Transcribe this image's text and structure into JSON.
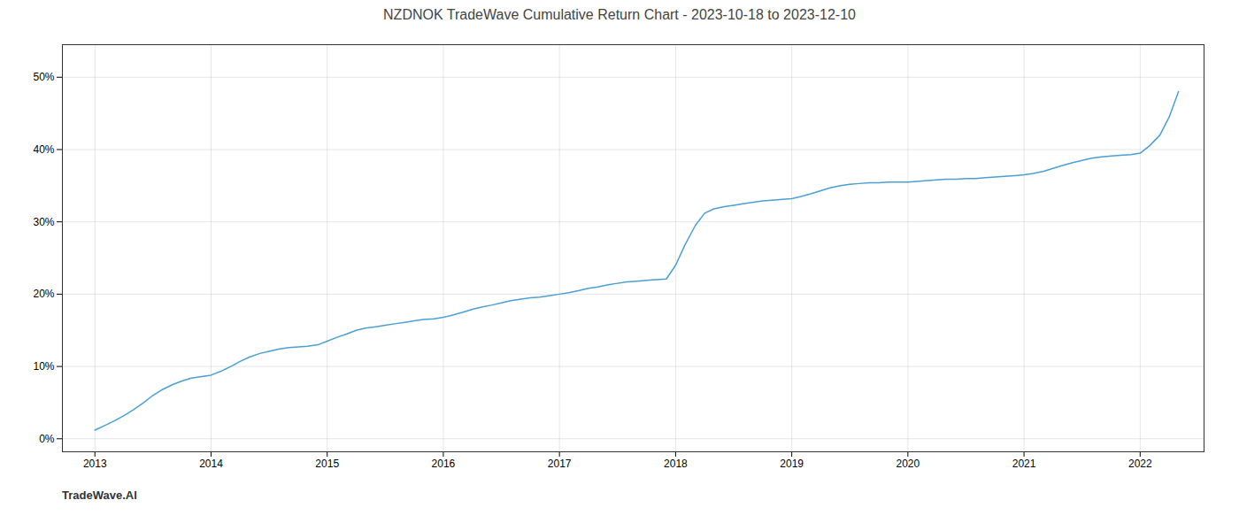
{
  "chart_data": {
    "type": "line",
    "title": "NZDNOK TradeWave Cumulative Return Chart - 2023-10-18 to 2023-12-10",
    "annotations": [
      "TradeWave.AI"
    ],
    "color": "#4a9fd4",
    "grid": true,
    "xlim": [
      2012.72,
      2022.55
    ],
    "ylim": [
      -0.018,
      0.545
    ],
    "xticks": [
      2013,
      2014,
      2015,
      2016,
      2017,
      2018,
      2019,
      2020,
      2021,
      2022
    ],
    "yticks": [
      {
        "value": 0.0,
        "label": "0%"
      },
      {
        "value": 0.1,
        "label": "10%"
      },
      {
        "value": 0.2,
        "label": "20%"
      },
      {
        "value": 0.3,
        "label": "30%"
      },
      {
        "value": 0.4,
        "label": "40%"
      },
      {
        "value": 0.5,
        "label": "50%"
      }
    ],
    "x": [
      2013.0,
      2013.08,
      2013.17,
      2013.25,
      2013.33,
      2013.42,
      2013.5,
      2013.58,
      2013.67,
      2013.75,
      2013.83,
      2013.92,
      2014.0,
      2014.08,
      2014.17,
      2014.25,
      2014.33,
      2014.42,
      2014.5,
      2014.58,
      2014.67,
      2014.75,
      2014.83,
      2014.92,
      2015.0,
      2015.08,
      2015.17,
      2015.25,
      2015.33,
      2015.42,
      2015.5,
      2015.58,
      2015.67,
      2015.75,
      2015.83,
      2015.92,
      2016.0,
      2016.08,
      2016.17,
      2016.25,
      2016.33,
      2016.42,
      2016.5,
      2016.58,
      2016.67,
      2016.75,
      2016.83,
      2016.92,
      2017.0,
      2017.08,
      2017.17,
      2017.25,
      2017.33,
      2017.42,
      2017.5,
      2017.58,
      2017.67,
      2017.75,
      2017.83,
      2017.92,
      2018.0,
      2018.08,
      2018.17,
      2018.25,
      2018.33,
      2018.42,
      2018.5,
      2018.58,
      2018.67,
      2018.75,
      2018.83,
      2018.92,
      2019.0,
      2019.08,
      2019.17,
      2019.25,
      2019.33,
      2019.42,
      2019.5,
      2019.58,
      2019.67,
      2019.75,
      2019.83,
      2019.92,
      2020.0,
      2020.08,
      2020.17,
      2020.25,
      2020.33,
      2020.42,
      2020.5,
      2020.58,
      2020.67,
      2020.75,
      2020.83,
      2020.92,
      2021.0,
      2021.08,
      2021.17,
      2021.25,
      2021.33,
      2021.42,
      2021.5,
      2021.58,
      2021.67,
      2021.75,
      2021.83,
      2021.92,
      2022.0,
      2022.08,
      2022.17,
      2022.25,
      2022.33
    ],
    "values": [
      0.012,
      0.018,
      0.025,
      0.032,
      0.04,
      0.05,
      0.06,
      0.068,
      0.075,
      0.08,
      0.084,
      0.086,
      0.088,
      0.093,
      0.1,
      0.107,
      0.113,
      0.118,
      0.121,
      0.124,
      0.126,
      0.127,
      0.128,
      0.13,
      0.135,
      0.14,
      0.145,
      0.15,
      0.153,
      0.155,
      0.157,
      0.159,
      0.161,
      0.163,
      0.165,
      0.166,
      0.168,
      0.171,
      0.175,
      0.179,
      0.182,
      0.185,
      0.188,
      0.191,
      0.193,
      0.195,
      0.196,
      0.198,
      0.2,
      0.202,
      0.205,
      0.208,
      0.21,
      0.213,
      0.215,
      0.217,
      0.218,
      0.219,
      0.22,
      0.221,
      0.24,
      0.268,
      0.295,
      0.312,
      0.318,
      0.321,
      0.323,
      0.325,
      0.327,
      0.329,
      0.33,
      0.331,
      0.332,
      0.335,
      0.339,
      0.343,
      0.347,
      0.35,
      0.352,
      0.353,
      0.354,
      0.354,
      0.355,
      0.355,
      0.355,
      0.356,
      0.357,
      0.358,
      0.359,
      0.359,
      0.36,
      0.36,
      0.361,
      0.362,
      0.363,
      0.364,
      0.365,
      0.367,
      0.37,
      0.374,
      0.378,
      0.382,
      0.385,
      0.388,
      0.39,
      0.391,
      0.392,
      0.393,
      0.395,
      0.405,
      0.42,
      0.445,
      0.48
    ]
  }
}
